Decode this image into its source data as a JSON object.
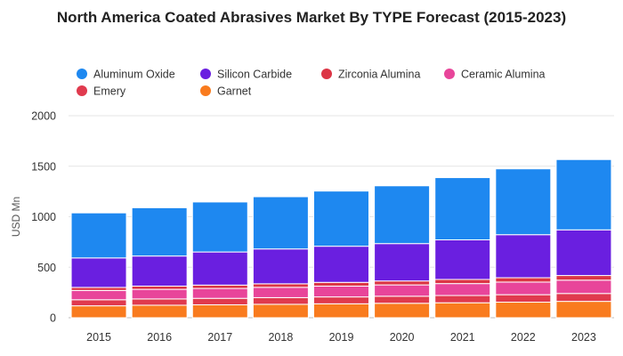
{
  "chart_data": {
    "type": "bar",
    "stacked": true,
    "title": "North America Coated Abrasives Market By TYPE Forecast (2015-2023)",
    "xlabel": "",
    "ylabel": "USD Mn",
    "ylim": [
      0,
      2000
    ],
    "yticks": [
      0,
      500,
      1000,
      1500,
      2000
    ],
    "grid": true,
    "legend_position": "top",
    "categories": [
      "2015",
      "2016",
      "2017",
      "2018",
      "2019",
      "2020",
      "2021",
      "2022",
      "2023"
    ],
    "series": [
      {
        "name": "Garnet",
        "color": "#f97b1e",
        "values": [
          118,
          124,
          128,
          133,
          138,
          143,
          148,
          154,
          162
        ]
      },
      {
        "name": "Emery",
        "color": "#e03a4e",
        "values": [
          60,
          62,
          64,
          66,
          68,
          70,
          72,
          74,
          78
        ]
      },
      {
        "name": "Ceramic Alumina",
        "color": "#e8459a",
        "values": [
          92,
          95,
          98,
          102,
          107,
          112,
          118,
          125,
          132
        ]
      },
      {
        "name": "Zirconia Alumina",
        "color": "#dc3545",
        "values": [
          30,
          32,
          33,
          35,
          37,
          39,
          41,
          43,
          46
        ]
      },
      {
        "name": "Silicon Carbide",
        "color": "#6a1fe0",
        "values": [
          292,
          298,
          328,
          345,
          358,
          370,
          392,
          426,
          452
        ]
      },
      {
        "name": "Aluminum Oxide",
        "color": "#1e88f0",
        "values": [
          446,
          478,
          495,
          517,
          546,
          572,
          616,
          652,
          696
        ]
      }
    ],
    "legend": [
      {
        "name": "Aluminum Oxide",
        "color": "#1e88f0"
      },
      {
        "name": "Silicon Carbide",
        "color": "#6a1fe0"
      },
      {
        "name": "Zirconia Alumina",
        "color": "#dc3545"
      },
      {
        "name": "Ceramic Alumina",
        "color": "#e8459a"
      },
      {
        "name": "Emery",
        "color": "#e03a4e"
      },
      {
        "name": "Garnet",
        "color": "#f97b1e"
      }
    ]
  }
}
